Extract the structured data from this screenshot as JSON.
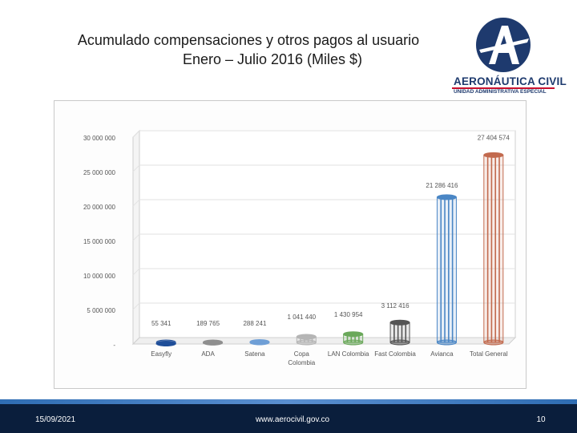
{
  "slide": {
    "title_line1": "Acumulado compensaciones y otros pagos al usuario",
    "title_line2_bold": "Enero – Julio 2016",
    "title_line2_rest": " (Miles $)"
  },
  "logo": {
    "name": "AERONÁUTICA CIVIL",
    "sub": "UNIDAD ADMINISTRATIVA ESPECIAL",
    "letter": "A",
    "icon": "aerocivil-logo-icon",
    "color": "#1e3a6e",
    "accent": "#c8102e"
  },
  "footer": {
    "date": "15/09/2021",
    "url": "www.aerocivil.gov.co",
    "page": "10"
  },
  "chart_data": {
    "type": "bar",
    "style": "3d-cylinder",
    "categories": [
      "Easyfly",
      "ADA",
      "Satena",
      "Copa Colombia",
      "LAN Colombia",
      "Fast Colombia",
      "Avianca",
      "Total General"
    ],
    "category_lines": [
      [
        "Easyfly"
      ],
      [
        "ADA"
      ],
      [
        "Satena"
      ],
      [
        "Copa",
        "Colombia"
      ],
      [
        "LAN Colombia"
      ],
      [
        "Fast Colombia"
      ],
      [
        "Avianca"
      ],
      [
        "Total General"
      ]
    ],
    "values": [
      55341,
      189765,
      288241,
      1041440,
      1430954,
      3112416,
      21286416,
      27404574
    ],
    "value_labels": [
      "55 341",
      "189 765",
      "288 241",
      "1 041 440",
      "1 430 954",
      "3 112 416",
      "21 286 416",
      "27 404 574"
    ],
    "colors": [
      "#1f4e99",
      "#8f8f8f",
      "#6f9fd6",
      "#b5b5b5",
      "#6aa85a",
      "#555555",
      "#4a86c5",
      "#c26a4e"
    ],
    "y_ticks": [
      0,
      5000000,
      10000000,
      15000000,
      20000000,
      25000000,
      30000000
    ],
    "y_tick_labels": [
      "-",
      "5 000 000",
      "10 000 000",
      "15 000 000",
      "20 000 000",
      "25 000 000",
      "30 000 000"
    ],
    "ylim": [
      0,
      30000000
    ],
    "grid": true,
    "legend": "none"
  }
}
